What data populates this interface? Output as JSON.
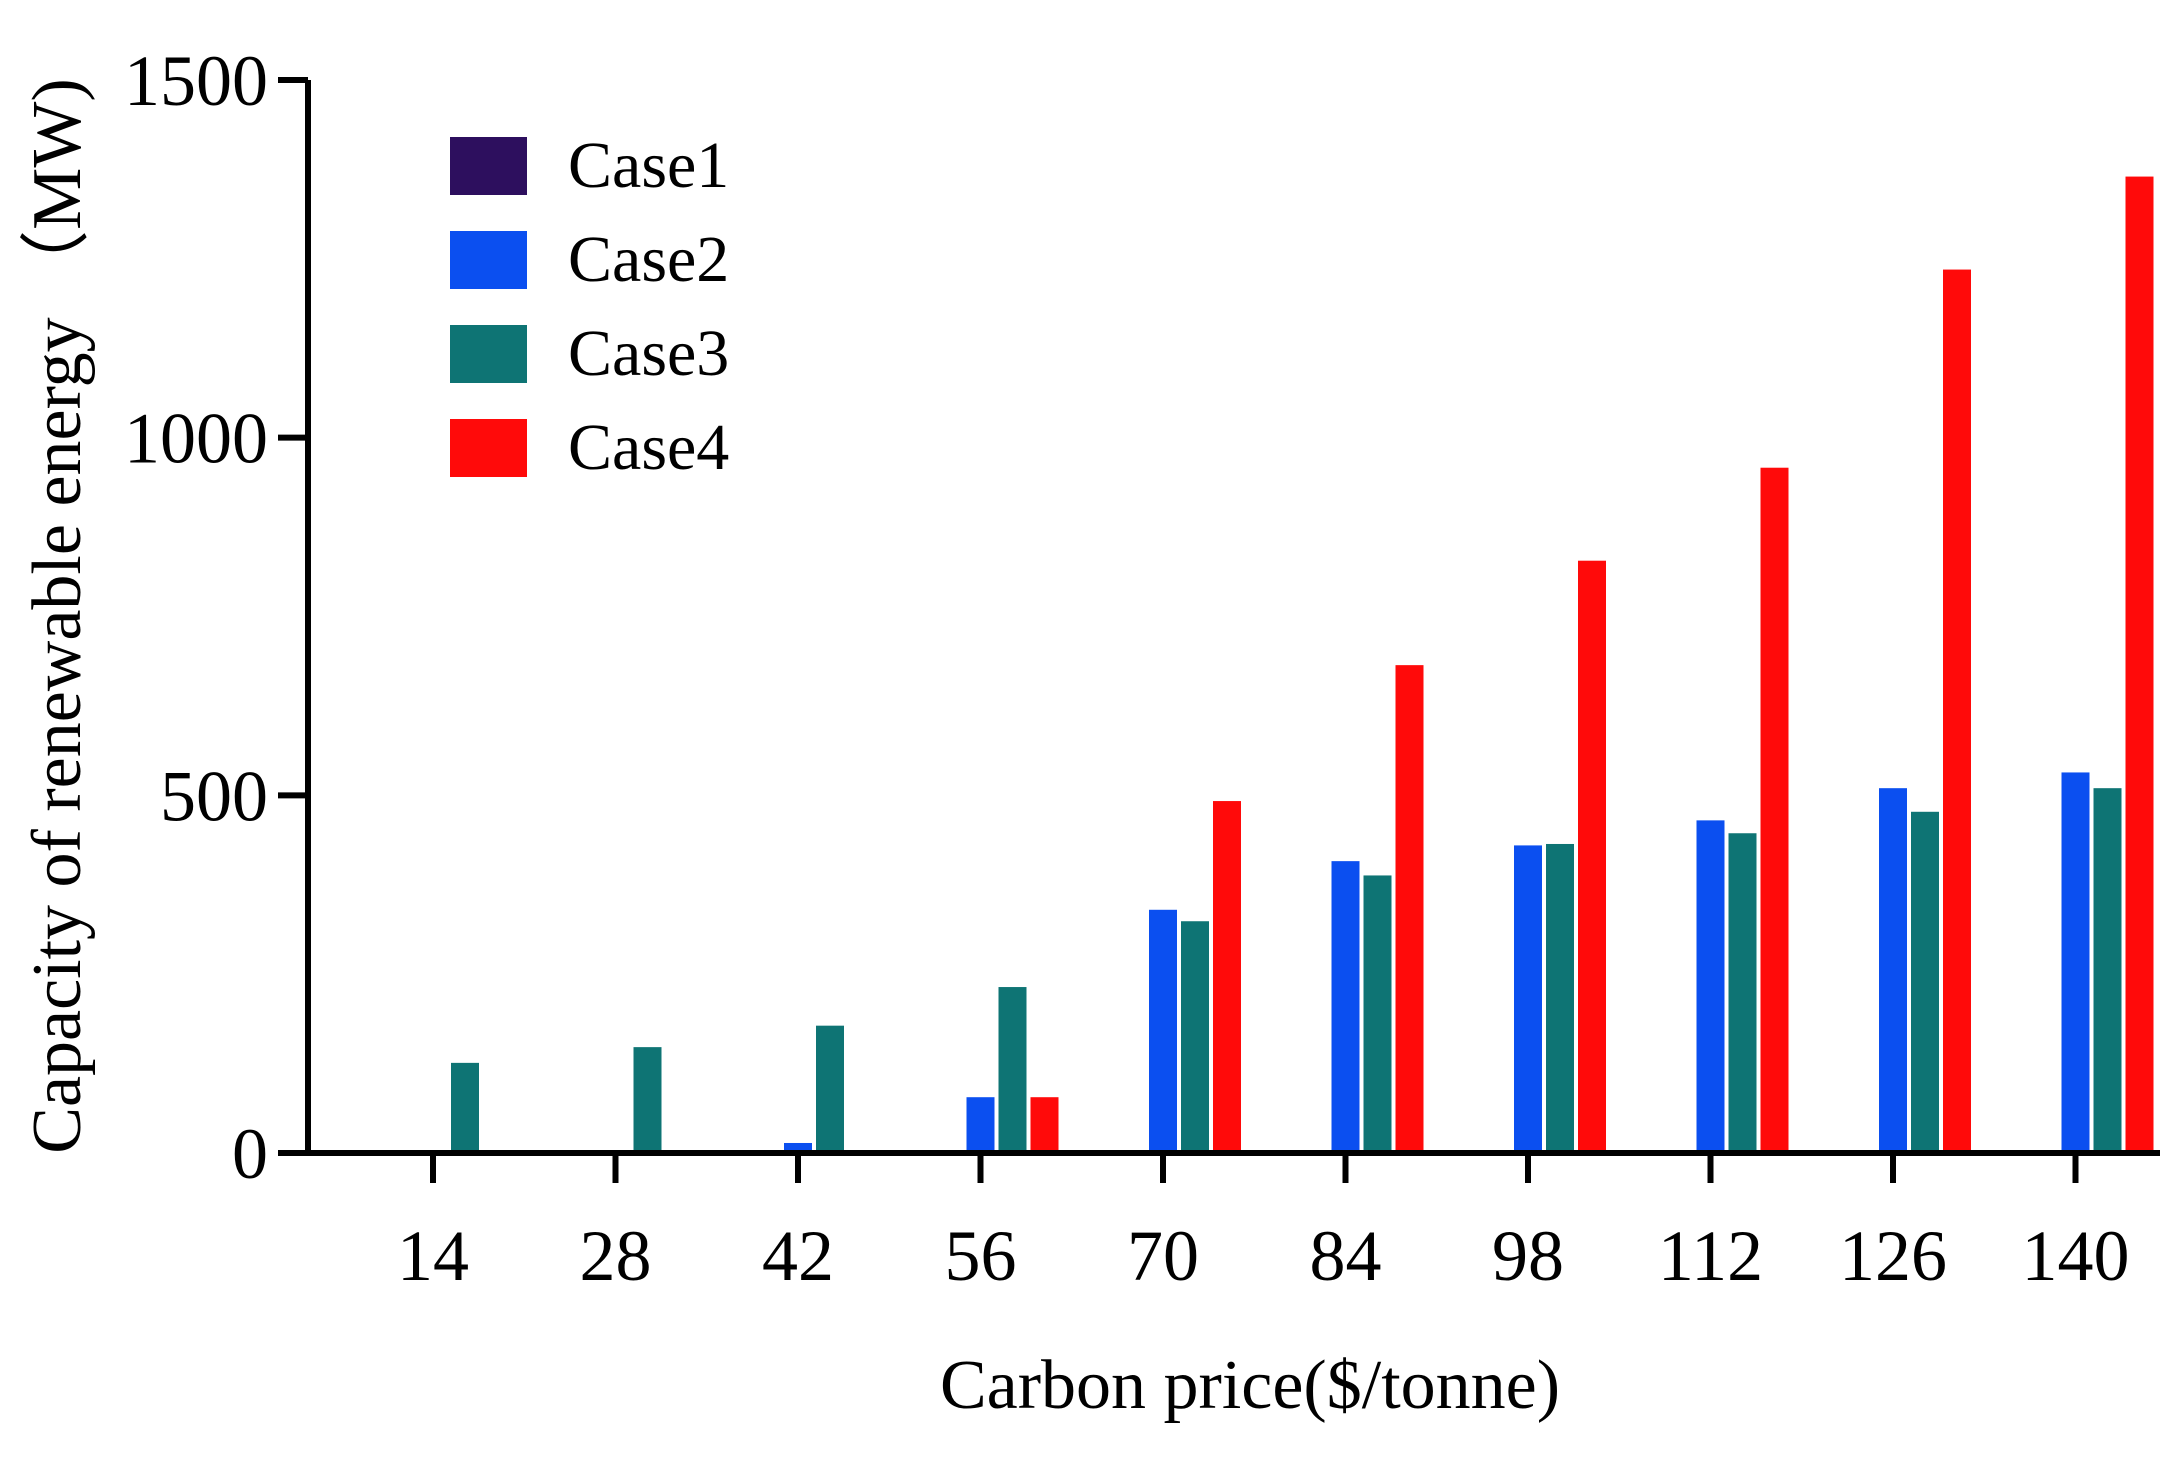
{
  "chart_data": {
    "type": "bar",
    "title": "",
    "xlabel": "Carbon price($/tonne)",
    "ylabel": "Capacity of  renewable energy （MW)",
    "categories": [
      "14",
      "28",
      "42",
      "56",
      "70",
      "84",
      "98",
      "112",
      "126",
      "140"
    ],
    "ylim": [
      0,
      1500
    ],
    "yticks": [
      "0",
      "500",
      "1000",
      "1500"
    ],
    "grid": false,
    "legend_position": "top-left",
    "series": [
      {
        "name": "Case1",
        "color": "#2d0f5e",
        "values": [
          0,
          0,
          0,
          0,
          0,
          0,
          0,
          0,
          0,
          0
        ]
      },
      {
        "name": "Case2",
        "color": "#0b4ff0",
        "values": [
          0,
          0,
          14,
          78,
          340,
          408,
          430,
          465,
          510,
          532
        ]
      },
      {
        "name": "Case3",
        "color": "#0e7474",
        "values": [
          126,
          148,
          178,
          232,
          324,
          388,
          432,
          447,
          477,
          510
        ]
      },
      {
        "name": "Case4",
        "color": "#ff0a0a",
        "values": [
          0,
          0,
          0,
          78,
          492,
          682,
          828,
          958,
          1235,
          1365
        ]
      }
    ]
  }
}
